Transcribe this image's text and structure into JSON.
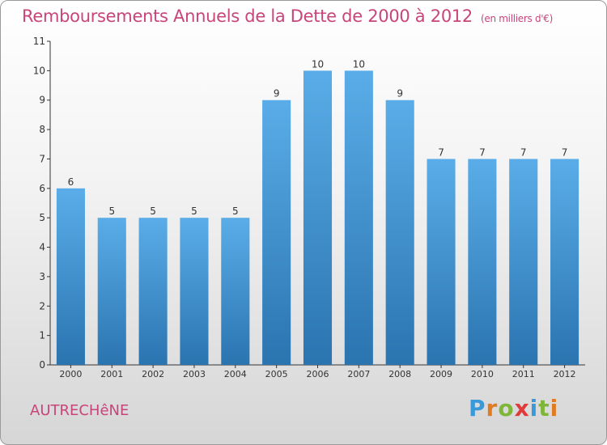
{
  "title": "Remboursements Annuels de la Dette de 2000 à 2012",
  "unit": "(en milliers d'€)",
  "commune": "AUTRECHêNE",
  "logo": {
    "letters": [
      "P",
      "r",
      "o",
      "x",
      "i",
      "t",
      "i"
    ],
    "colors": [
      "#3a9ad9",
      "#e07b22",
      "#7fb63a",
      "#e03a3a",
      "#3a9ad9",
      "#7fb63a",
      "#e07b22"
    ]
  },
  "colors": {
    "title": "#c8457a",
    "bar_top": "#5aade8",
    "bar_bottom": "#2a74b0",
    "axis": "#333333"
  },
  "chart_data": {
    "type": "bar",
    "categories": [
      "2000",
      "2001",
      "2002",
      "2003",
      "2004",
      "2005",
      "2006",
      "2007",
      "2008",
      "2009",
      "2010",
      "2011",
      "2012"
    ],
    "values": [
      6,
      5,
      5,
      5,
      5,
      9,
      10,
      10,
      9,
      7,
      7,
      7,
      7
    ],
    "data_labels": [
      "6",
      "5",
      "5",
      "5",
      "5",
      "9",
      "10",
      "10",
      "9",
      "7",
      "7",
      "7",
      "7"
    ],
    "yticks": [
      "0",
      "1",
      "2",
      "3",
      "4",
      "5",
      "6",
      "7",
      "8",
      "9",
      "10",
      "11"
    ],
    "ylim": [
      0,
      11
    ],
    "grid": false,
    "legend": "none"
  }
}
